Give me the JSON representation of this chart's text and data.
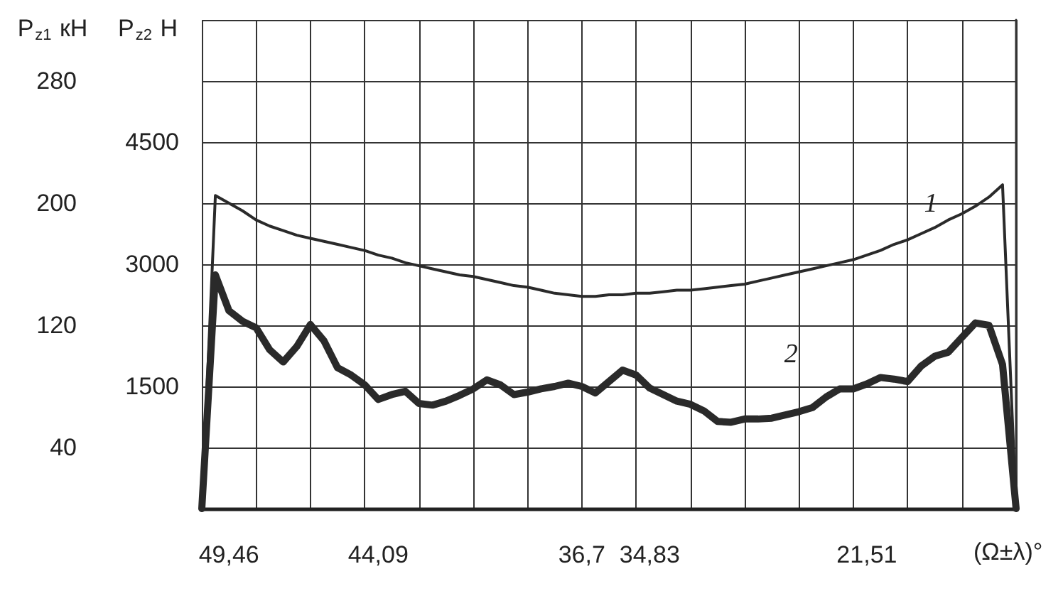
{
  "chart_data": {
    "type": "line",
    "xlabel": "(Ω±λ)°",
    "ylabel": "P$_{z1}$ кН",
    "y2label": "P$_{z2}$ Н",
    "categories": [
      null,
      null,
      "49,46",
      null,
      null,
      null,
      null,
      null,
      null,
      null,
      null,
      null,
      null,
      "44,09",
      null,
      null,
      null,
      null,
      null,
      null,
      null,
      null,
      null,
      null,
      null,
      null,
      null,
      null,
      "36,7",
      null,
      null,
      null,
      null,
      "34,83",
      null,
      null,
      null,
      null,
      null,
      null,
      null,
      null,
      null,
      null,
      null,
      null,
      null,
      null,
      null,
      "21,51",
      null,
      null,
      null,
      null,
      null,
      null,
      null,
      null,
      null,
      null,
      null
    ],
    "ylim": [
      0,
      320
    ],
    "yticks": [
      {
        "value": 0,
        "label": null
      },
      40,
      {
        "value": 80,
        "label": null
      },
      120,
      {
        "value": 160,
        "label": null
      },
      200,
      {
        "value": 240,
        "label": null
      },
      280,
      {
        "value": 320,
        "label": null
      }
    ],
    "y2lim": [
      0,
      6000
    ],
    "y2ticks": [
      1500,
      3000,
      4500
    ],
    "grid": true,
    "marker": "none",
    "line_style": "solid",
    "series": [
      {
        "name": "1",
        "color": "#2a2a2a",
        "values": [
          0,
          205,
          200,
          195,
          189,
          185,
          182,
          179,
          177,
          175,
          173,
          171,
          169,
          166,
          164,
          161,
          159,
          157,
          155,
          153,
          152,
          150,
          148,
          146,
          145,
          143,
          141,
          140,
          139,
          139,
          140,
          140,
          141,
          141,
          142,
          143,
          143,
          144,
          145,
          146,
          147,
          149,
          151,
          153,
          155,
          157,
          159,
          161,
          163,
          166,
          169,
          173,
          176,
          180,
          184,
          189,
          193,
          198,
          204,
          212,
          0
        ]
      },
      {
        "name": "2",
        "color": "#2a2a2a",
        "axis": "y2",
        "values": [
          0,
          2870,
          2430,
          2300,
          2220,
          1950,
          1800,
          1990,
          2260,
          2060,
          1730,
          1640,
          1520,
          1340,
          1400,
          1440,
          1290,
          1270,
          1320,
          1390,
          1470,
          1580,
          1520,
          1400,
          1430,
          1470,
          1500,
          1540,
          1500,
          1420,
          1560,
          1700,
          1640,
          1480,
          1400,
          1320,
          1280,
          1200,
          1070,
          1060,
          1100,
          1100,
          1110,
          1150,
          1190,
          1240,
          1370,
          1470,
          1470,
          1530,
          1610,
          1590,
          1560,
          1750,
          1870,
          1920,
          2100,
          2280,
          2250,
          1770,
          0
        ]
      }
    ]
  }
}
